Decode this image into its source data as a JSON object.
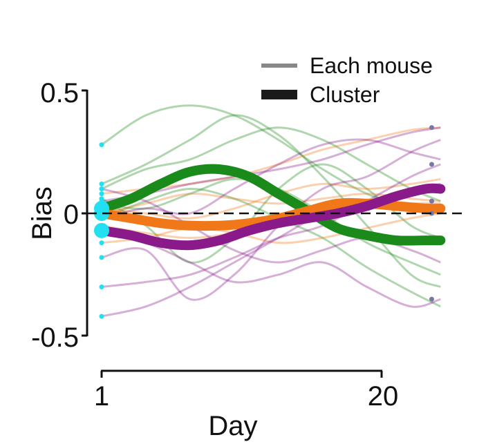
{
  "chart_data": {
    "type": "line",
    "xlabel": "Day",
    "ylabel": "Bias",
    "x_ticks": [
      "1",
      "20"
    ],
    "y_ticks": [
      "0.5",
      "0",
      "-0.5"
    ],
    "xlim": [
      1,
      24
    ],
    "ylim": [
      -0.5,
      0.5
    ],
    "legend": {
      "placement": "top-right",
      "entries": [
        {
          "label": "Each mouse",
          "style": "thin"
        },
        {
          "label": "Cluster",
          "style": "thick"
        }
      ]
    },
    "colors": {
      "green": "#1a8a1a",
      "orange": "#f07818",
      "purple": "#8a1a8a",
      "start_marker": "#22e0f0",
      "end_marker": "#7878a8",
      "zero_line": "#111111"
    },
    "clusters": [
      {
        "color": "green",
        "x": [
          1,
          3,
          5,
          7,
          9,
          11,
          13,
          15,
          17,
          19,
          21,
          23,
          24
        ],
        "y": [
          0.02,
          0.06,
          0.12,
          0.17,
          0.18,
          0.15,
          0.08,
          0.01,
          -0.06,
          -0.09,
          -0.11,
          -0.11,
          -0.11
        ]
      },
      {
        "color": "orange",
        "x": [
          1,
          3,
          5,
          7,
          9,
          11,
          13,
          15,
          17,
          19,
          21,
          23,
          24
        ],
        "y": [
          0.0,
          -0.02,
          -0.04,
          -0.05,
          -0.05,
          -0.04,
          -0.02,
          0.01,
          0.04,
          0.04,
          0.03,
          0.02,
          0.02
        ]
      },
      {
        "color": "purple",
        "x": [
          1,
          3,
          5,
          7,
          9,
          11,
          13,
          15,
          17,
          19,
          21,
          23,
          24
        ],
        "y": [
          -0.07,
          -0.09,
          -0.12,
          -0.13,
          -0.11,
          -0.07,
          -0.04,
          -0.02,
          0.0,
          0.03,
          0.07,
          0.1,
          0.1
        ]
      }
    ],
    "mice": [
      {
        "color": "green",
        "x": [
          1,
          4,
          7,
          10,
          13,
          16,
          19,
          22,
          24
        ],
        "y": [
          0.28,
          0.4,
          0.44,
          0.4,
          0.3,
          0.18,
          0.08,
          0.02,
          0.0
        ]
      },
      {
        "color": "green",
        "x": [
          1,
          4,
          7,
          10,
          13,
          16,
          19,
          22,
          24
        ],
        "y": [
          0.12,
          0.2,
          0.3,
          0.4,
          0.32,
          0.15,
          -0.05,
          -0.25,
          -0.3
        ]
      },
      {
        "color": "green",
        "x": [
          1,
          4,
          7,
          10,
          13,
          16,
          19,
          22,
          24
        ],
        "y": [
          0.06,
          -0.05,
          -0.2,
          -0.1,
          0.1,
          0.2,
          0.1,
          -0.05,
          -0.1
        ]
      },
      {
        "color": "green",
        "x": [
          1,
          4,
          7,
          10,
          13,
          16,
          19,
          22,
          24
        ],
        "y": [
          0.1,
          0.18,
          0.22,
          0.3,
          0.35,
          0.3,
          0.2,
          0.1,
          0.05
        ]
      },
      {
        "color": "green",
        "x": [
          1,
          4,
          7,
          10,
          13,
          16,
          19,
          22,
          24
        ],
        "y": [
          -0.02,
          0.05,
          0.1,
          0.06,
          -0.02,
          -0.1,
          -0.22,
          -0.32,
          -0.38
        ]
      },
      {
        "color": "green",
        "x": [
          1,
          4,
          7,
          10,
          13,
          16,
          19,
          22,
          24
        ],
        "y": [
          0.04,
          0.02,
          0.08,
          0.14,
          0.1,
          0.0,
          -0.12,
          -0.2,
          -0.25
        ]
      },
      {
        "color": "orange",
        "x": [
          1,
          4,
          7,
          10,
          13,
          16,
          19,
          22,
          24
        ],
        "y": [
          0.08,
          0.1,
          0.12,
          0.15,
          0.2,
          0.26,
          0.3,
          0.34,
          0.35
        ]
      },
      {
        "color": "orange",
        "x": [
          1,
          4,
          7,
          10,
          13,
          16,
          19,
          22,
          24
        ],
        "y": [
          0.02,
          0.0,
          -0.02,
          0.02,
          0.08,
          0.12,
          0.1,
          0.12,
          0.14
        ]
      },
      {
        "color": "orange",
        "x": [
          1,
          4,
          7,
          10,
          13,
          16,
          19,
          22,
          24
        ],
        "y": [
          -0.05,
          -0.08,
          -0.1,
          -0.08,
          -0.04,
          0.0,
          0.02,
          0.04,
          0.04
        ]
      },
      {
        "color": "orange",
        "x": [
          1,
          4,
          7,
          10,
          13,
          16,
          19,
          22,
          24
        ],
        "y": [
          0.0,
          0.04,
          0.08,
          0.06,
          0.04,
          0.06,
          0.08,
          0.06,
          0.05
        ]
      },
      {
        "color": "orange",
        "x": [
          1,
          4,
          7,
          10,
          13,
          16,
          19,
          22,
          24
        ],
        "y": [
          -0.12,
          -0.1,
          -0.06,
          -0.08,
          -0.12,
          -0.1,
          -0.06,
          -0.02,
          0.0
        ]
      },
      {
        "color": "purple",
        "x": [
          1,
          4,
          7,
          10,
          13,
          16,
          19,
          22,
          24
        ],
        "y": [
          -0.42,
          -0.38,
          -0.3,
          -0.2,
          -0.1,
          0.0,
          0.05,
          0.1,
          0.12
        ]
      },
      {
        "color": "purple",
        "x": [
          1,
          4,
          7,
          10,
          13,
          16,
          19,
          22,
          24
        ],
        "y": [
          -0.3,
          -0.28,
          -0.25,
          -0.18,
          -0.1,
          -0.05,
          0.05,
          0.15,
          0.2
        ]
      },
      {
        "color": "purple",
        "x": [
          1,
          4,
          7,
          10,
          13,
          16,
          19,
          22,
          24
        ],
        "y": [
          -0.18,
          -0.15,
          -0.35,
          -0.25,
          -0.05,
          0.1,
          0.15,
          0.25,
          0.3
        ]
      },
      {
        "color": "purple",
        "x": [
          1,
          4,
          7,
          10,
          13,
          16,
          19,
          22,
          24
        ],
        "y": [
          0.1,
          0.05,
          -0.05,
          -0.15,
          -0.2,
          -0.15,
          -0.1,
          -0.15,
          -0.2
        ]
      },
      {
        "color": "purple",
        "x": [
          1,
          4,
          7,
          10,
          13,
          16,
          19,
          22,
          24
        ],
        "y": [
          -0.08,
          -0.12,
          -0.2,
          -0.28,
          -0.25,
          -0.2,
          -0.3,
          -0.38,
          -0.35
        ]
      },
      {
        "color": "purple",
        "x": [
          1,
          4,
          7,
          10,
          13,
          16,
          19,
          22,
          24
        ],
        "y": [
          -0.02,
          0.02,
          0.0,
          0.1,
          0.2,
          0.28,
          0.3,
          0.25,
          0.22
        ]
      },
      {
        "color": "purple",
        "x": [
          1,
          4,
          7,
          10,
          13,
          16,
          19,
          22,
          24
        ],
        "y": [
          0.05,
          0.08,
          0.12,
          0.15,
          0.18,
          0.22,
          0.28,
          0.33,
          0.35
        ]
      }
    ]
  }
}
